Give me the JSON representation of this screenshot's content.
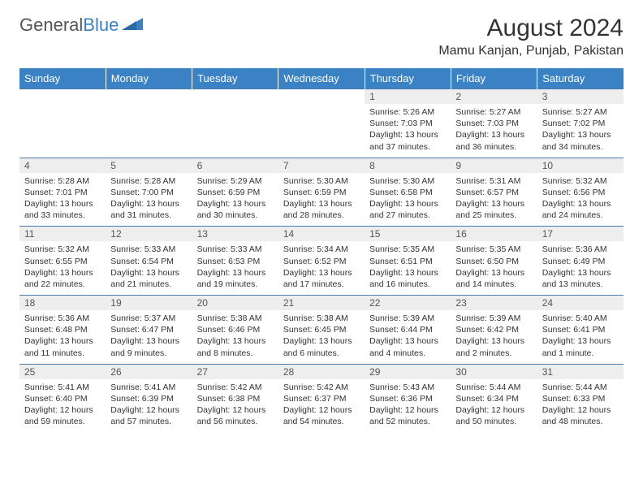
{
  "logo": {
    "word1": "General",
    "word2": "Blue"
  },
  "title": "August 2024",
  "location": "Mamu Kanjan, Punjab, Pakistan",
  "colors": {
    "header_bg": "#3b82c4",
    "header_text": "#ffffff",
    "daynum_bg": "#eeeeee",
    "border": "#4a7ba8",
    "logo_gray": "#555555",
    "logo_blue": "#3b82c4"
  },
  "typography": {
    "title_size": 30,
    "location_size": 16,
    "dayheader_size": 13,
    "daynum_size": 12,
    "body_size": 10.5
  },
  "day_headers": [
    "Sunday",
    "Monday",
    "Tuesday",
    "Wednesday",
    "Thursday",
    "Friday",
    "Saturday"
  ],
  "weeks": [
    [
      null,
      null,
      null,
      null,
      {
        "n": "1",
        "sr": "5:26 AM",
        "ss": "7:03 PM",
        "dl": "13 hours and 37 minutes."
      },
      {
        "n": "2",
        "sr": "5:27 AM",
        "ss": "7:03 PM",
        "dl": "13 hours and 36 minutes."
      },
      {
        "n": "3",
        "sr": "5:27 AM",
        "ss": "7:02 PM",
        "dl": "13 hours and 34 minutes."
      }
    ],
    [
      {
        "n": "4",
        "sr": "5:28 AM",
        "ss": "7:01 PM",
        "dl": "13 hours and 33 minutes."
      },
      {
        "n": "5",
        "sr": "5:28 AM",
        "ss": "7:00 PM",
        "dl": "13 hours and 31 minutes."
      },
      {
        "n": "6",
        "sr": "5:29 AM",
        "ss": "6:59 PM",
        "dl": "13 hours and 30 minutes."
      },
      {
        "n": "7",
        "sr": "5:30 AM",
        "ss": "6:59 PM",
        "dl": "13 hours and 28 minutes."
      },
      {
        "n": "8",
        "sr": "5:30 AM",
        "ss": "6:58 PM",
        "dl": "13 hours and 27 minutes."
      },
      {
        "n": "9",
        "sr": "5:31 AM",
        "ss": "6:57 PM",
        "dl": "13 hours and 25 minutes."
      },
      {
        "n": "10",
        "sr": "5:32 AM",
        "ss": "6:56 PM",
        "dl": "13 hours and 24 minutes."
      }
    ],
    [
      {
        "n": "11",
        "sr": "5:32 AM",
        "ss": "6:55 PM",
        "dl": "13 hours and 22 minutes."
      },
      {
        "n": "12",
        "sr": "5:33 AM",
        "ss": "6:54 PM",
        "dl": "13 hours and 21 minutes."
      },
      {
        "n": "13",
        "sr": "5:33 AM",
        "ss": "6:53 PM",
        "dl": "13 hours and 19 minutes."
      },
      {
        "n": "14",
        "sr": "5:34 AM",
        "ss": "6:52 PM",
        "dl": "13 hours and 17 minutes."
      },
      {
        "n": "15",
        "sr": "5:35 AM",
        "ss": "6:51 PM",
        "dl": "13 hours and 16 minutes."
      },
      {
        "n": "16",
        "sr": "5:35 AM",
        "ss": "6:50 PM",
        "dl": "13 hours and 14 minutes."
      },
      {
        "n": "17",
        "sr": "5:36 AM",
        "ss": "6:49 PM",
        "dl": "13 hours and 13 minutes."
      }
    ],
    [
      {
        "n": "18",
        "sr": "5:36 AM",
        "ss": "6:48 PM",
        "dl": "13 hours and 11 minutes."
      },
      {
        "n": "19",
        "sr": "5:37 AM",
        "ss": "6:47 PM",
        "dl": "13 hours and 9 minutes."
      },
      {
        "n": "20",
        "sr": "5:38 AM",
        "ss": "6:46 PM",
        "dl": "13 hours and 8 minutes."
      },
      {
        "n": "21",
        "sr": "5:38 AM",
        "ss": "6:45 PM",
        "dl": "13 hours and 6 minutes."
      },
      {
        "n": "22",
        "sr": "5:39 AM",
        "ss": "6:44 PM",
        "dl": "13 hours and 4 minutes."
      },
      {
        "n": "23",
        "sr": "5:39 AM",
        "ss": "6:42 PM",
        "dl": "13 hours and 2 minutes."
      },
      {
        "n": "24",
        "sr": "5:40 AM",
        "ss": "6:41 PM",
        "dl": "13 hours and 1 minute."
      }
    ],
    [
      {
        "n": "25",
        "sr": "5:41 AM",
        "ss": "6:40 PM",
        "dl": "12 hours and 59 minutes."
      },
      {
        "n": "26",
        "sr": "5:41 AM",
        "ss": "6:39 PM",
        "dl": "12 hours and 57 minutes."
      },
      {
        "n": "27",
        "sr": "5:42 AM",
        "ss": "6:38 PM",
        "dl": "12 hours and 56 minutes."
      },
      {
        "n": "28",
        "sr": "5:42 AM",
        "ss": "6:37 PM",
        "dl": "12 hours and 54 minutes."
      },
      {
        "n": "29",
        "sr": "5:43 AM",
        "ss": "6:36 PM",
        "dl": "12 hours and 52 minutes."
      },
      {
        "n": "30",
        "sr": "5:44 AM",
        "ss": "6:34 PM",
        "dl": "12 hours and 50 minutes."
      },
      {
        "n": "31",
        "sr": "5:44 AM",
        "ss": "6:33 PM",
        "dl": "12 hours and 48 minutes."
      }
    ]
  ],
  "labels": {
    "sunrise": "Sunrise:",
    "sunset": "Sunset:",
    "daylight": "Daylight:"
  }
}
